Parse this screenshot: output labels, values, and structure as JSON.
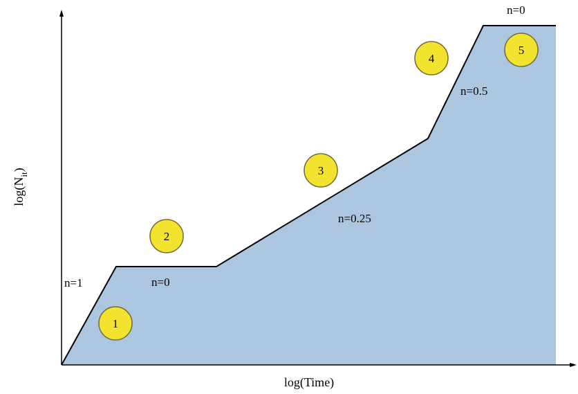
{
  "axes": {
    "x_label": "log(Time)",
    "y_label_main": "log(N",
    "y_label_sub": "it",
    "y_label_close": ")"
  },
  "colors": {
    "fill": "#adc6e0",
    "badge": "#f2e42e",
    "badge_stroke": "#6e6a3a"
  },
  "slopes": [
    {
      "label": "n=1"
    },
    {
      "label": "n=0"
    },
    {
      "label": "n=0.25"
    },
    {
      "label": "n=0.5"
    },
    {
      "label": "n=0"
    }
  ],
  "regions": [
    {
      "number": "1"
    },
    {
      "number": "2"
    },
    {
      "number": "3"
    },
    {
      "number": "4"
    },
    {
      "number": "5"
    }
  ]
}
